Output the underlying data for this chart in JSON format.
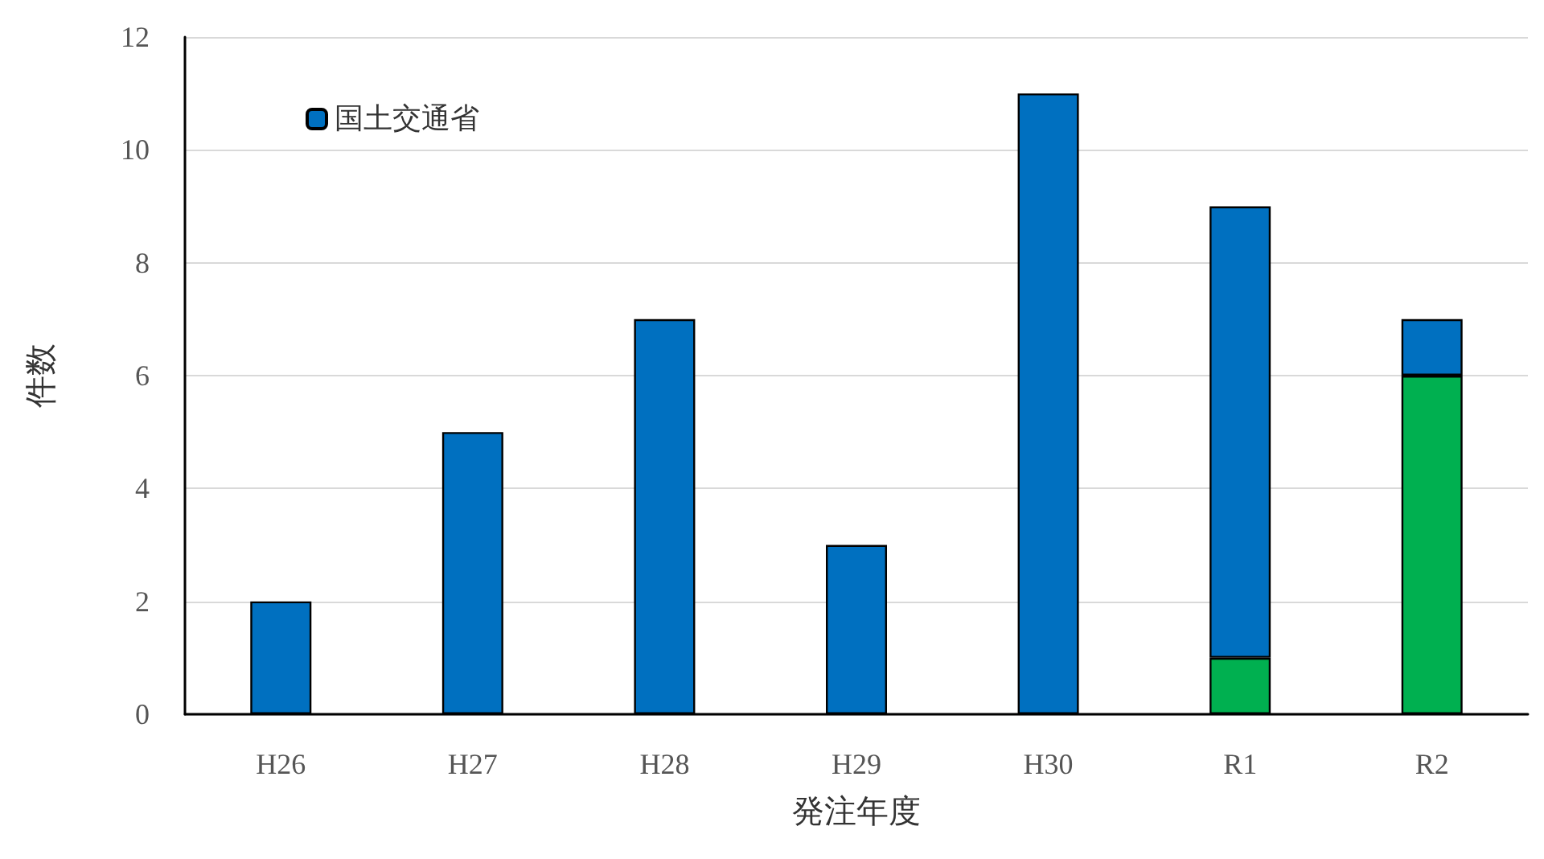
{
  "chart_data": {
    "type": "bar",
    "stacked": true,
    "xlabel": "発注年度",
    "ylabel": "件数",
    "categories": [
      "H26",
      "H27",
      "H28",
      "H29",
      "H30",
      "R1",
      "R2"
    ],
    "series": [
      {
        "color": "#00b050",
        "values": [
          null,
          null,
          null,
          null,
          null,
          1,
          6
        ]
      },
      {
        "name": "国土交通省",
        "color": "#0070c0",
        "values": [
          2,
          5,
          7,
          3,
          11,
          8,
          1
        ]
      }
    ],
    "ylim": [
      0,
      12
    ],
    "yticks": [
      0,
      2,
      4,
      6,
      8,
      10,
      12
    ],
    "grid": "y",
    "legend": "top left"
  }
}
